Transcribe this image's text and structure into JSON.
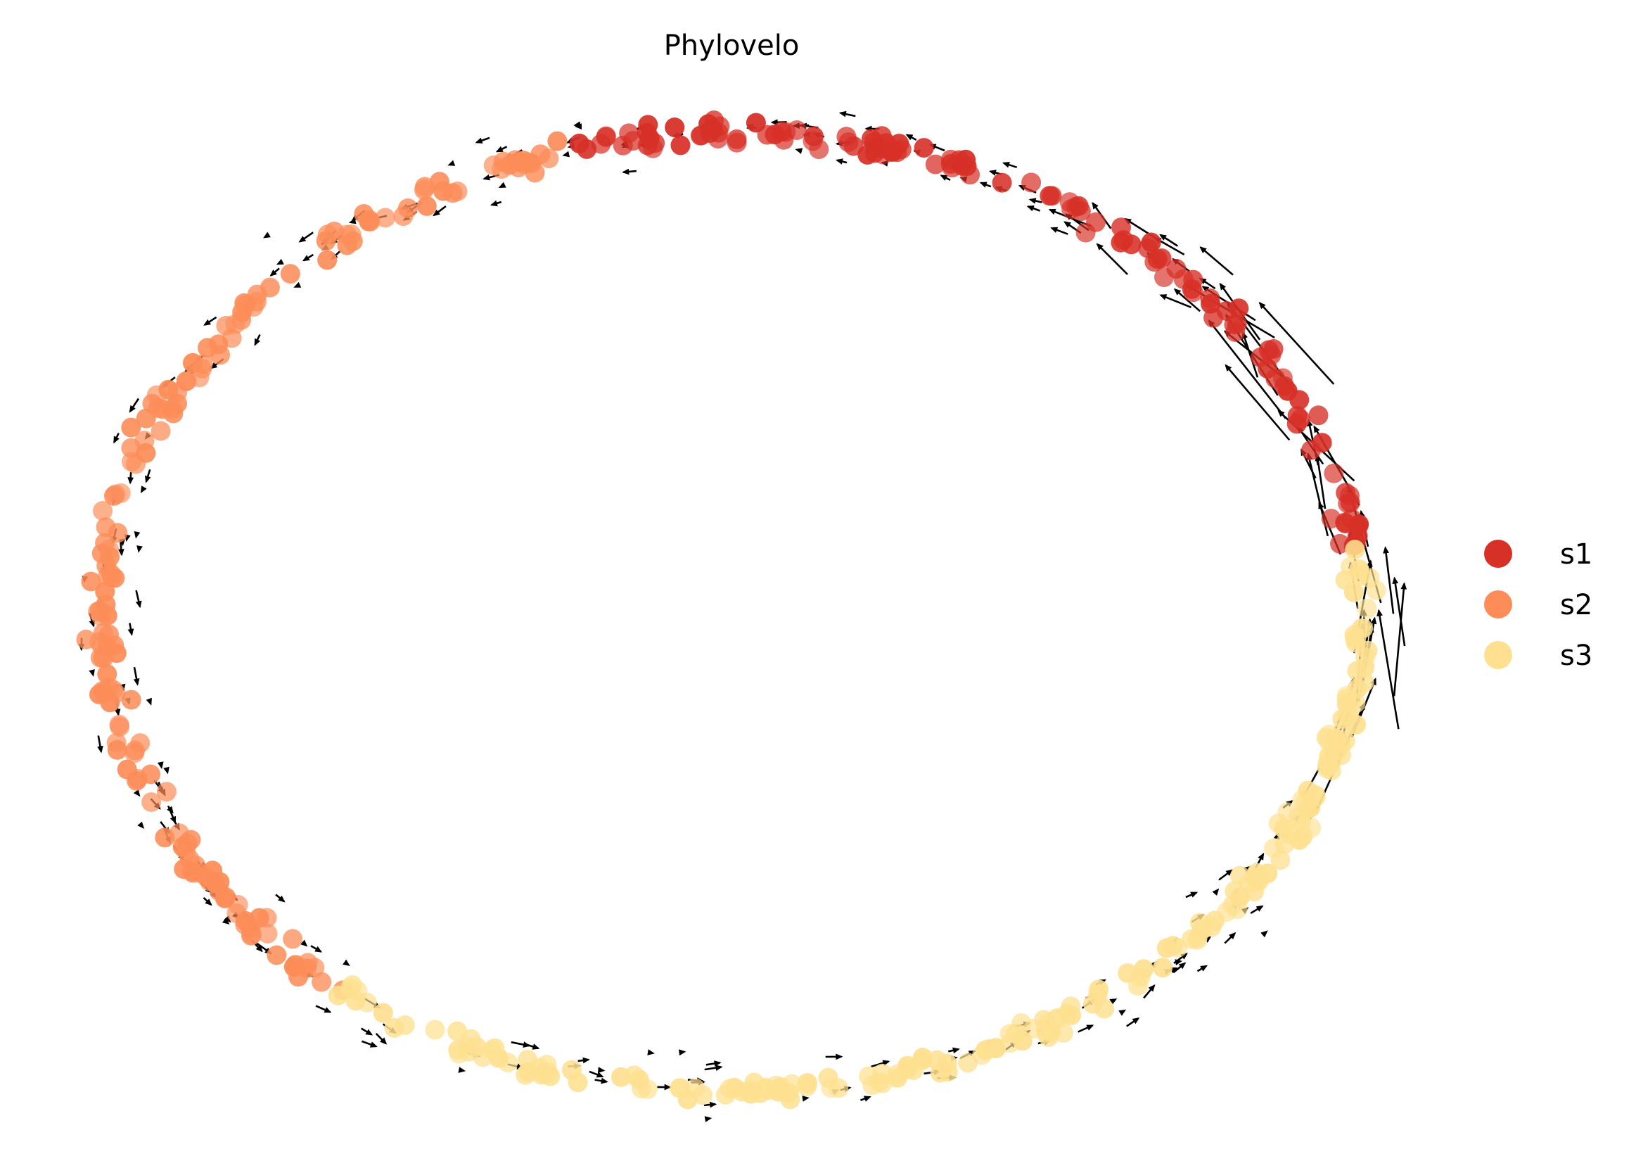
{
  "chart_data": {
    "type": "scatter",
    "title": "Phylovelo",
    "xlabel": "",
    "ylabel": "",
    "axes_visible": false,
    "grid": false,
    "legend_position": "right",
    "xlim": [
      -1.1,
      1.1
    ],
    "ylim": [
      -1.0,
      1.0
    ],
    "series": [
      {
        "name": "s1",
        "color": "#d73027",
        "arc_degrees": [
          8,
          105
        ],
        "approx_count": 130
      },
      {
        "name": "s2",
        "color": "#fc8d59",
        "arc_degrees": [
          105,
          232
        ],
        "approx_count": 170
      },
      {
        "name": "s3",
        "color": "#fee090",
        "arc_degrees": [
          232,
          368
        ],
        "approx_count": 200
      }
    ],
    "velocity_arrows": {
      "color": "#000000",
      "dominant_direction": "counter-clockwise along the ring",
      "largest_magnitude_region": "s1 / s3 boundary (right side)"
    }
  }
}
